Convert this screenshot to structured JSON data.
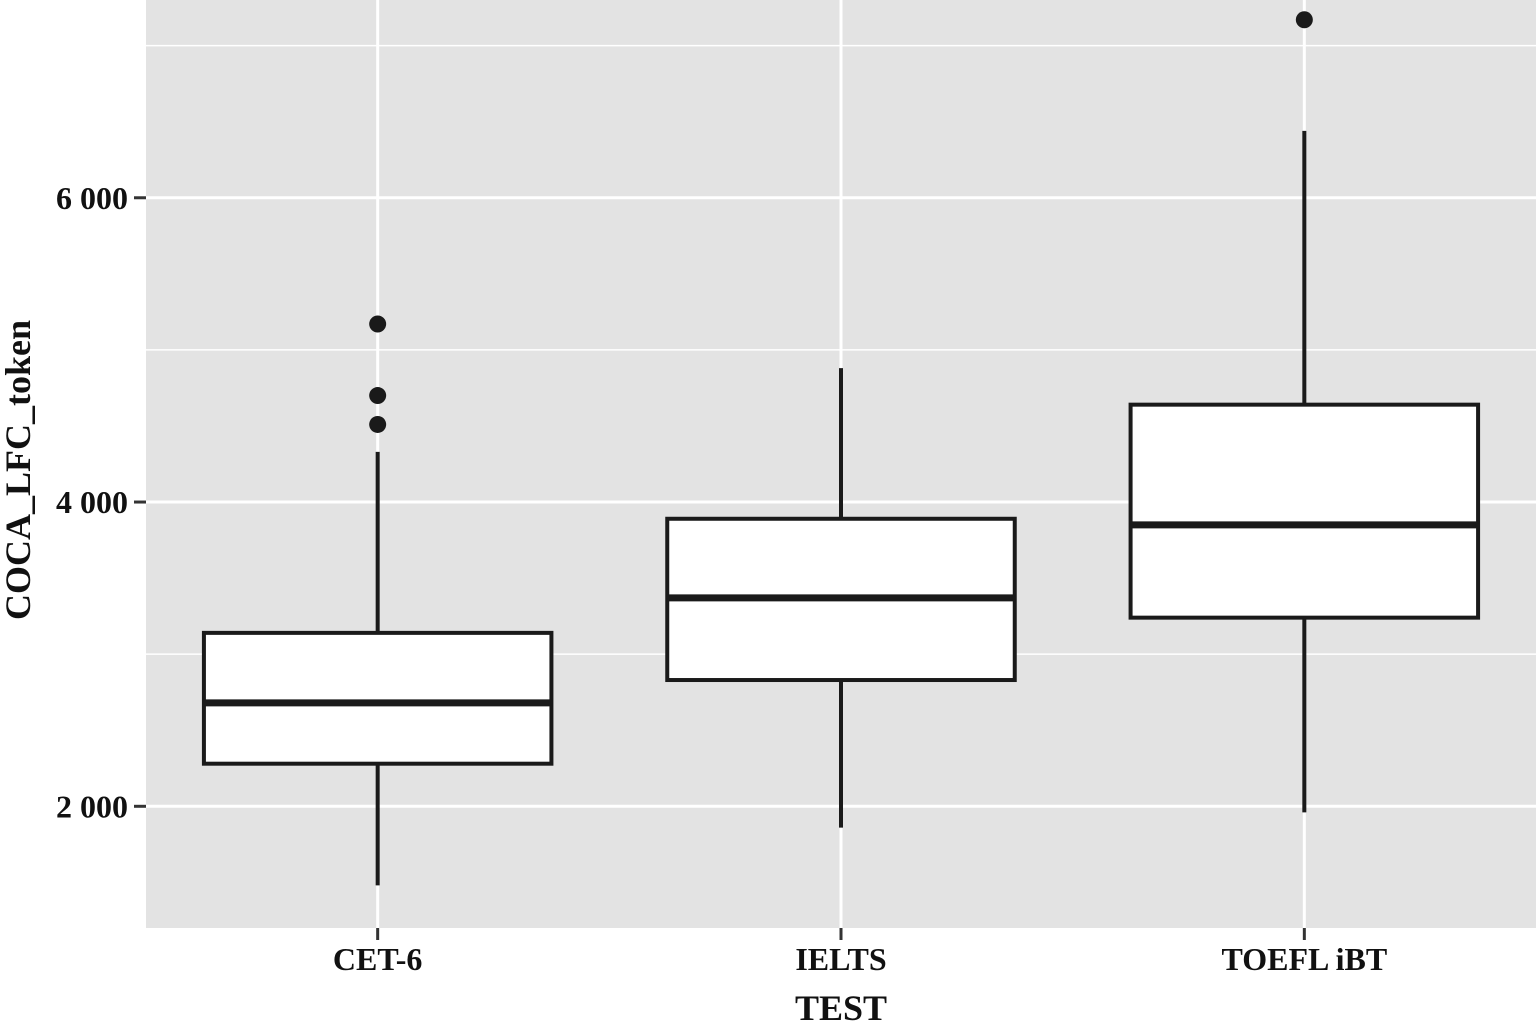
{
  "chart_data": {
    "type": "box",
    "xlabel": "TEST",
    "ylabel": "COCA_LFC_token",
    "categories": [
      "CET-6",
      "IELTS",
      "TOEFL iBT"
    ],
    "yticks": [
      2000,
      4000,
      6000
    ],
    "ytick_labels": [
      "2 000",
      "4 000",
      "6 000"
    ],
    "ylim": [
      1200,
      7300
    ],
    "grid": true,
    "colors": {
      "panel": "#e3e3e3",
      "grid": "#ffffff",
      "box_fill": "#ffffff",
      "stroke": "#1a1a1a"
    },
    "boxes": [
      {
        "category": "CET-6",
        "whisker_low": 1480,
        "q1": 2280,
        "median": 2680,
        "q3": 3140,
        "whisker_high": 4330,
        "outliers": [
          4510,
          4700,
          5170
        ]
      },
      {
        "category": "IELTS",
        "whisker_low": 1860,
        "q1": 2830,
        "median": 3370,
        "q3": 3890,
        "whisker_high": 4880,
        "outliers": []
      },
      {
        "category": "TOEFL iBT",
        "whisker_low": 1960,
        "q1": 3240,
        "median": 3850,
        "q3": 4640,
        "whisker_high": 6440,
        "outliers": [
          7170
        ]
      }
    ]
  }
}
